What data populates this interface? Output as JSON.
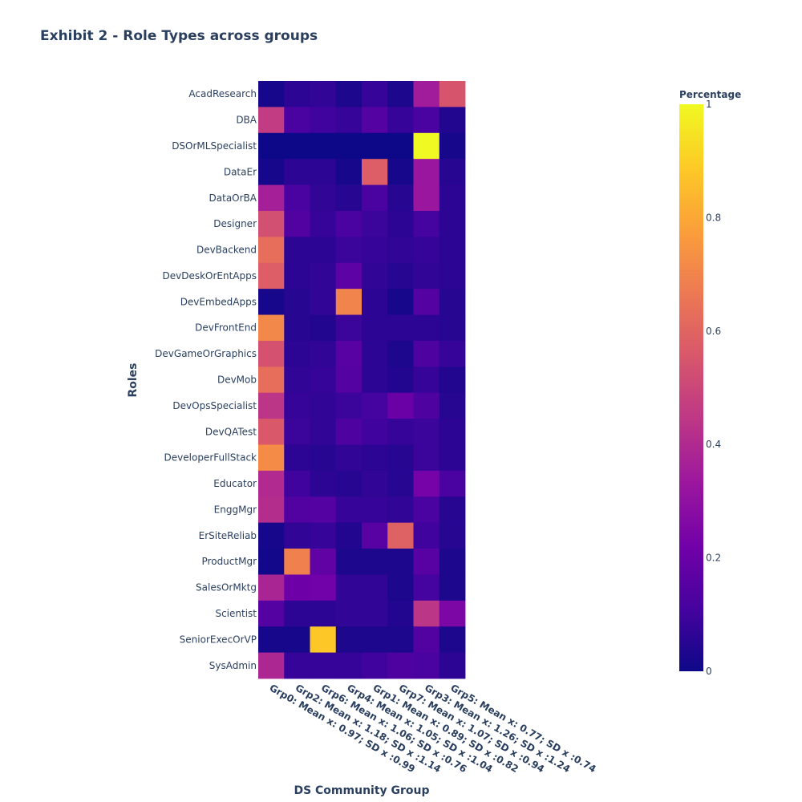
{
  "chart_data": {
    "type": "heatmap",
    "title": "Exhibit 2 - Role Types across groups",
    "xlabel": "DS Community Group",
    "ylabel": "Roles",
    "colorbar": {
      "title": "Percentage",
      "range": [
        0,
        1
      ],
      "ticks": [
        "0",
        "0.2",
        "0.4",
        "0.6",
        "0.8",
        "1"
      ],
      "tick_values": [
        0,
        0.2,
        0.4,
        0.6,
        0.8,
        1
      ]
    },
    "colorscale": "plasma",
    "x": [
      "Grp0: Mean x: 0.97; SD x :0.99",
      "Grp2: Mean x: 1.18; SD x :1.14",
      "Grp6: Mean x: 1.06; SD x :0.76",
      "Grp4: Mean x: 1.05; SD x :1.04",
      "Grp1: Mean x: 0.89; SD x :0.82",
      "Grp7: Mean x: 1.07; SD x :0.94",
      "Grp3: Mean x: 1.26; SD x :1.24",
      "Grp5: Mean x: 0.77; SD x :0.74"
    ],
    "y": [
      "AcadResearch",
      "DBA",
      "DSOrMLSpecialist",
      "DataEr",
      "DataOrBA",
      "Designer",
      "DevBackend",
      "DevDeskOrEntApps",
      "DevEmbedApps",
      "DevFrontEnd",
      "DevGameOrGraphics",
      "DevMob",
      "DevOpsSpecialist",
      "DevQATest",
      "DeveloperFullStack",
      "Educator",
      "EnggMgr",
      "ErSiteReliab",
      "ProductMgr",
      "SalesOrMktg",
      "Scientist",
      "SeniorExecOrVP",
      "SysAdmin"
    ],
    "z": [
      [
        0.02,
        0.06,
        0.07,
        0.03,
        0.08,
        0.03,
        0.35,
        0.55
      ],
      [
        0.46,
        0.12,
        0.1,
        0.08,
        0.15,
        0.08,
        0.12,
        0.04
      ],
      [
        0.0,
        0.0,
        0.0,
        0.0,
        0.0,
        0.0,
        1.0,
        0.02
      ],
      [
        0.02,
        0.06,
        0.06,
        0.02,
        0.58,
        0.02,
        0.33,
        0.05
      ],
      [
        0.36,
        0.12,
        0.07,
        0.05,
        0.12,
        0.05,
        0.33,
        0.06
      ],
      [
        0.53,
        0.14,
        0.08,
        0.12,
        0.09,
        0.06,
        0.11,
        0.06
      ],
      [
        0.63,
        0.06,
        0.06,
        0.09,
        0.08,
        0.07,
        0.08,
        0.06
      ],
      [
        0.58,
        0.06,
        0.07,
        0.17,
        0.07,
        0.05,
        0.07,
        0.06
      ],
      [
        0.02,
        0.05,
        0.07,
        0.7,
        0.06,
        0.02,
        0.15,
        0.05
      ],
      [
        0.71,
        0.05,
        0.04,
        0.09,
        0.06,
        0.06,
        0.06,
        0.05
      ],
      [
        0.54,
        0.06,
        0.07,
        0.16,
        0.06,
        0.03,
        0.13,
        0.08
      ],
      [
        0.63,
        0.07,
        0.08,
        0.15,
        0.06,
        0.04,
        0.08,
        0.04
      ],
      [
        0.44,
        0.08,
        0.07,
        0.09,
        0.11,
        0.2,
        0.13,
        0.05
      ],
      [
        0.56,
        0.09,
        0.07,
        0.13,
        0.1,
        0.08,
        0.09,
        0.06
      ],
      [
        0.72,
        0.06,
        0.05,
        0.07,
        0.06,
        0.05,
        0.09,
        0.06
      ],
      [
        0.4,
        0.1,
        0.06,
        0.05,
        0.07,
        0.05,
        0.23,
        0.12
      ],
      [
        0.41,
        0.14,
        0.15,
        0.08,
        0.08,
        0.07,
        0.12,
        0.05
      ],
      [
        0.02,
        0.07,
        0.08,
        0.04,
        0.16,
        0.59,
        0.1,
        0.05
      ],
      [
        0.01,
        0.69,
        0.18,
        0.03,
        0.03,
        0.03,
        0.16,
        0.03
      ],
      [
        0.38,
        0.21,
        0.22,
        0.07,
        0.07,
        0.03,
        0.11,
        0.03
      ],
      [
        0.15,
        0.06,
        0.06,
        0.07,
        0.07,
        0.04,
        0.44,
        0.25
      ],
      [
        0.02,
        0.02,
        0.88,
        0.03,
        0.03,
        0.03,
        0.14,
        0.03
      ],
      [
        0.39,
        0.08,
        0.08,
        0.08,
        0.1,
        0.13,
        0.12,
        0.06
      ]
    ]
  }
}
